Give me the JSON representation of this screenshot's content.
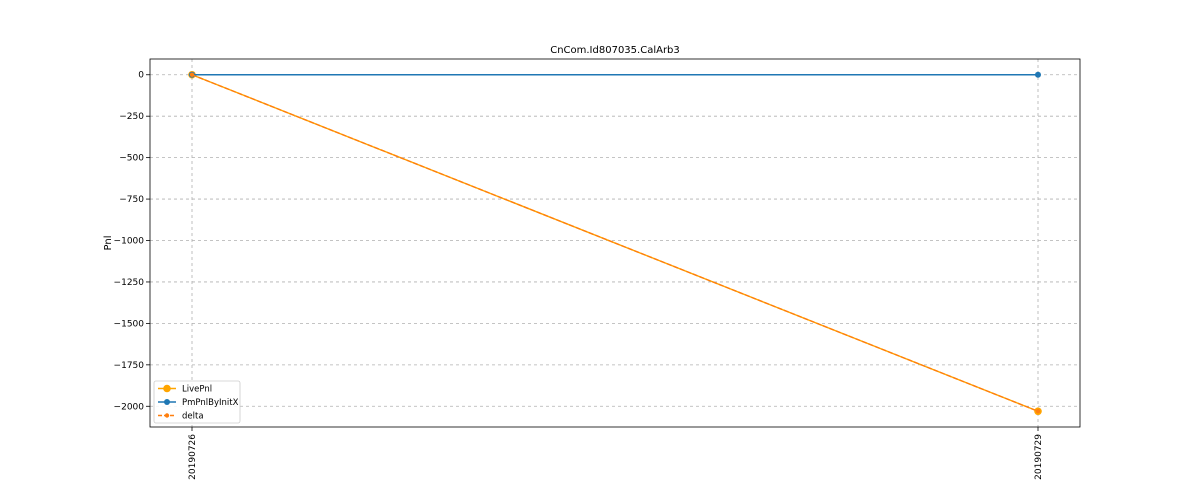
{
  "chart_data": {
    "type": "line",
    "title": "CnCom.Id807035.CalArb3",
    "xlabel": "",
    "ylabel": "Pnl",
    "categories": [
      "20190726",
      "20190729"
    ],
    "ylim": [
      -2125,
      95
    ],
    "yticks": [
      0,
      -250,
      -500,
      -750,
      -1000,
      -1250,
      -1500,
      -1750,
      -2000
    ],
    "ytick_labels": [
      "0",
      "−250",
      "−500",
      "−750",
      "−1000",
      "−1250",
      "−1500",
      "−1750",
      "−2000"
    ],
    "grid": true,
    "legend_position": "lower-left",
    "series": [
      {
        "name": "LivePnl",
        "values": [
          0,
          -2030
        ],
        "color": "#ffa500",
        "linestyle": "solid",
        "marker": "circle-large"
      },
      {
        "name": "PmPnlByInitX",
        "values": [
          0,
          0
        ],
        "color": "#1f77b4",
        "linestyle": "solid",
        "marker": "circle"
      },
      {
        "name": "delta",
        "values": [
          0,
          -2030
        ],
        "color": "#ff7f0e",
        "linestyle": "dashed",
        "marker": "circle-small"
      }
    ]
  }
}
